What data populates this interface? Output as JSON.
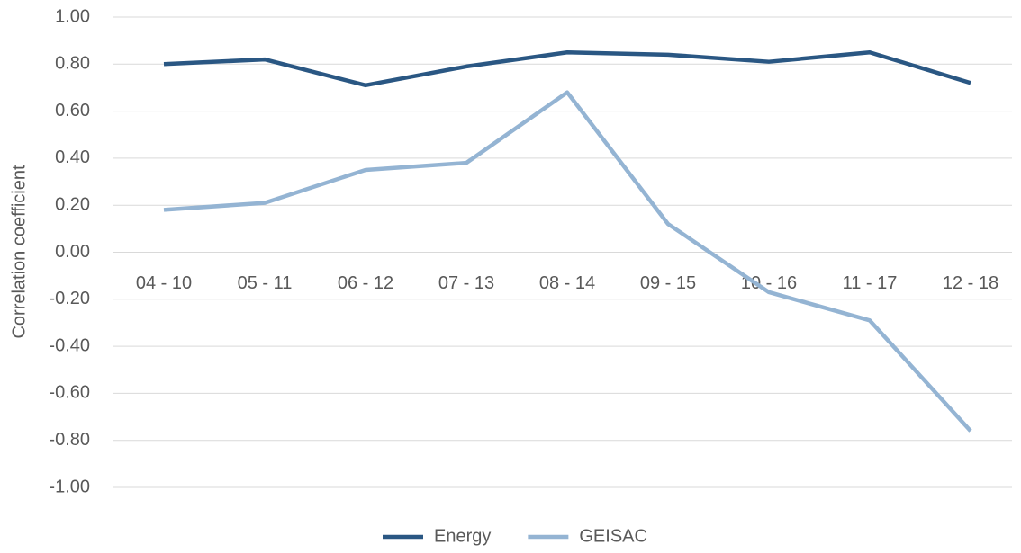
{
  "chart_data": {
    "type": "line",
    "y_label": "Correlation coefficient",
    "categories": [
      "04 - 10",
      "05 - 11",
      "06 - 12",
      "07 - 13",
      "08 - 14",
      "09 - 15",
      "10 - 16",
      "11 - 17",
      "12 - 18"
    ],
    "series": [
      {
        "name": "Energy",
        "color": "#2a5783",
        "values": [
          0.8,
          0.82,
          0.71,
          0.79,
          0.85,
          0.84,
          0.81,
          0.85,
          0.72
        ]
      },
      {
        "name": "GEISAC",
        "color": "#94b4d3",
        "values": [
          0.18,
          0.21,
          0.35,
          0.38,
          0.68,
          0.12,
          -0.17,
          -0.29,
          -0.76
        ]
      }
    ],
    "ylim": [
      -1,
      1
    ],
    "yticks": [
      {
        "value": 1,
        "label": "1.00"
      },
      {
        "value": 0.8,
        "label": "0.80"
      },
      {
        "value": 0.6,
        "label": "0.60"
      },
      {
        "value": 0.4,
        "label": "0.40"
      },
      {
        "value": 0.2,
        "label": "0.20"
      },
      {
        "value": 0,
        "label": "0.00"
      },
      {
        "value": -0.2,
        "label": "-0.20"
      },
      {
        "value": -0.4,
        "label": "-0.40"
      },
      {
        "value": -0.6,
        "label": "-0.60"
      },
      {
        "value": -0.8,
        "label": "-0.80"
      },
      {
        "value": -1,
        "label": "-1.00"
      }
    ],
    "grid": true,
    "legend": "bottom"
  }
}
